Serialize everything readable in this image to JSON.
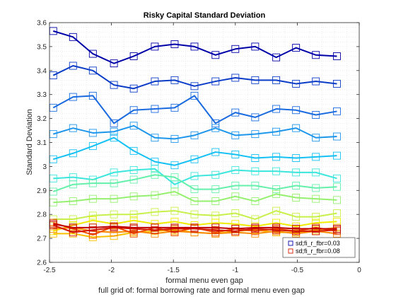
{
  "chart_data": {
    "type": "line",
    "title": "Risky Capital Standard Deviation",
    "xlabel": "formal menu even gap",
    "xlabel2": "full grid of: formal borrowing rate and formal menu even gap",
    "ylabel": "Standard Deviation",
    "xlim": [
      -2.5,
      0
    ],
    "ylim": [
      2.6,
      3.6
    ],
    "xticks": [
      -2.5,
      -2,
      -1.5,
      -1,
      -0.5,
      0
    ],
    "xtick_labels": [
      "-2.5",
      "-2",
      "-1.5",
      "-1",
      "-0.5",
      "0"
    ],
    "yticks": [
      2.6,
      2.7,
      2.8,
      2.9,
      3.0,
      3.1,
      3.2,
      3.3,
      3.4,
      3.5,
      3.6
    ],
    "ytick_labels": [
      "2.6",
      "2.7",
      "2.8",
      "2.9",
      "3",
      "3.1",
      "3.2",
      "3.3",
      "3.4",
      "3.5",
      "3.6"
    ],
    "grid": "minor dotted",
    "legend_location": "bottom-right",
    "x": [
      -2.47,
      -2.31,
      -2.15,
      -1.98,
      -1.82,
      -1.65,
      -1.49,
      -1.33,
      -1.16,
      -1.0,
      -0.84,
      -0.67,
      -0.51,
      -0.35,
      -0.18
    ],
    "series": [
      {
        "name": "sd;fi_r_fbr=0.03",
        "color": "#0000a8",
        "marker": true,
        "values": [
          3.565,
          3.54,
          3.47,
          3.43,
          3.46,
          3.5,
          3.51,
          3.5,
          3.465,
          3.49,
          3.5,
          3.455,
          3.495,
          3.465,
          3.46
        ]
      },
      {
        "color": "#0a3cc8",
        "marker": true,
        "values": [
          3.38,
          3.42,
          3.4,
          3.34,
          3.325,
          3.355,
          3.36,
          3.335,
          3.355,
          3.37,
          3.36,
          3.36,
          3.345,
          3.355,
          3.345
        ]
      },
      {
        "color": "#1a6ae0",
        "marker": true,
        "values": [
          3.245,
          3.29,
          3.295,
          3.18,
          3.235,
          3.24,
          3.245,
          3.295,
          3.18,
          3.225,
          3.205,
          3.24,
          3.235,
          3.215,
          3.23
        ]
      },
      {
        "color": "#1e96ec",
        "marker": true,
        "values": [
          3.135,
          3.16,
          3.14,
          3.145,
          3.17,
          3.12,
          3.115,
          3.13,
          3.16,
          3.13,
          3.135,
          3.145,
          3.16,
          3.12,
          3.125
        ]
      },
      {
        "color": "#14c0f4",
        "marker": true,
        "values": [
          3.03,
          3.055,
          3.085,
          3.12,
          3.065,
          3.02,
          3.005,
          3.03,
          3.06,
          3.05,
          3.035,
          3.04,
          3.035,
          3.04,
          3.045
        ]
      },
      {
        "color": "#3ce6dc",
        "marker": true,
        "values": [
          2.95,
          2.955,
          2.945,
          2.975,
          2.985,
          2.99,
          2.925,
          2.96,
          2.965,
          2.985,
          2.98,
          2.98,
          2.975,
          2.975,
          2.95
        ]
      },
      {
        "color": "#64f0aa",
        "marker": true,
        "values": [
          2.895,
          2.925,
          2.93,
          2.93,
          2.945,
          2.965,
          2.955,
          2.905,
          2.905,
          2.92,
          2.92,
          2.905,
          2.92,
          2.91,
          2.915
        ]
      },
      {
        "color": "#96f070",
        "marker": true,
        "values": [
          2.85,
          2.855,
          2.865,
          2.865,
          2.875,
          2.88,
          2.895,
          2.855,
          2.855,
          2.875,
          2.855,
          2.885,
          2.87,
          2.865,
          2.86
        ]
      },
      {
        "color": "#c8f04a",
        "marker": true,
        "values": [
          2.78,
          2.78,
          2.795,
          2.8,
          2.8,
          2.81,
          2.815,
          2.8,
          2.795,
          2.805,
          2.78,
          2.815,
          2.79,
          2.79,
          2.805
        ]
      },
      {
        "color": "#f0ec00",
        "marker": true,
        "values": [
          2.73,
          2.755,
          2.775,
          2.76,
          2.775,
          2.76,
          2.77,
          2.755,
          2.765,
          2.76,
          2.75,
          2.765,
          2.75,
          2.765,
          2.77
        ]
      },
      {
        "color": "#f8c000",
        "marker": true,
        "values": [
          2.72,
          2.72,
          2.705,
          2.71,
          2.725,
          2.73,
          2.735,
          2.725,
          2.72,
          2.73,
          2.735,
          2.725,
          2.725,
          2.735,
          2.745
        ]
      },
      {
        "color": "#f88a00",
        "marker": true,
        "values": [
          2.74,
          2.745,
          2.73,
          2.725,
          2.73,
          2.72,
          2.73,
          2.725,
          2.72,
          2.725,
          2.72,
          2.73,
          2.72,
          2.73,
          2.72
        ]
      },
      {
        "color": "#f05000",
        "marker": true,
        "values": [
          2.765,
          2.74,
          2.715,
          2.75,
          2.72,
          2.745,
          2.725,
          2.745,
          2.725,
          2.74,
          2.73,
          2.74,
          2.73,
          2.745,
          2.73
        ]
      },
      {
        "name": "sd;fi_r_fbr=0.08",
        "color": "#d41800",
        "marker": true,
        "values": [
          2.755,
          2.725,
          2.735,
          2.745,
          2.74,
          2.735,
          2.74,
          2.74,
          2.735,
          2.73,
          2.74,
          2.735,
          2.73,
          2.73,
          2.735
        ]
      },
      {
        "color": "#c00000",
        "marker": true,
        "values": [
          2.76,
          2.745,
          2.745,
          2.75,
          2.745,
          2.745,
          2.745,
          2.745,
          2.745,
          2.74,
          2.745,
          2.745,
          2.74,
          2.74,
          2.74
        ]
      }
    ]
  }
}
